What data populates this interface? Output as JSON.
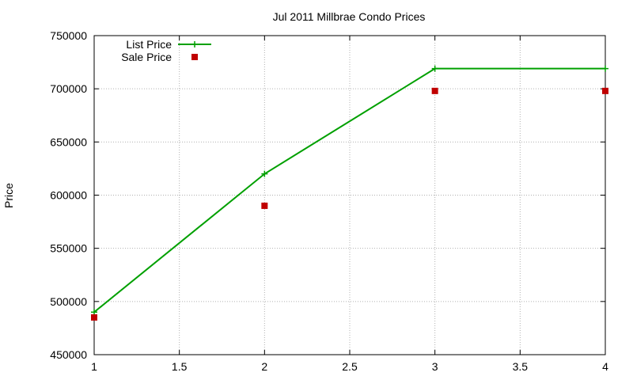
{
  "chart_data": {
    "type": "line",
    "title": "Jul 2011 Millbrae Condo Prices",
    "xlabel": "",
    "ylabel": "Price",
    "xlim": [
      1,
      4
    ],
    "ylim": [
      450000,
      750000
    ],
    "x_ticks": [
      1,
      1.5,
      2,
      2.5,
      3,
      3.5,
      4
    ],
    "x_tick_labels": [
      "1",
      "1.5",
      "2",
      "2.5",
      "3",
      "3.5",
      "4"
    ],
    "y_ticks": [
      450000,
      500000,
      550000,
      600000,
      650000,
      700000,
      750000
    ],
    "y_tick_labels": [
      "450000",
      "500000",
      "550000",
      "600000",
      "650000",
      "700000",
      "750000"
    ],
    "grid": true,
    "legend_position": "top-left",
    "series": [
      {
        "name": "List Price",
        "style": "linespoints",
        "color": "#00a000",
        "x": [
          1,
          2,
          3,
          4
        ],
        "y": [
          490000,
          620000,
          719000,
          719000
        ]
      },
      {
        "name": "Sale Price",
        "style": "points",
        "color": "#c00000",
        "x": [
          1,
          2,
          3,
          4
        ],
        "y": [
          485000,
          590000,
          698000,
          698000
        ]
      }
    ]
  }
}
